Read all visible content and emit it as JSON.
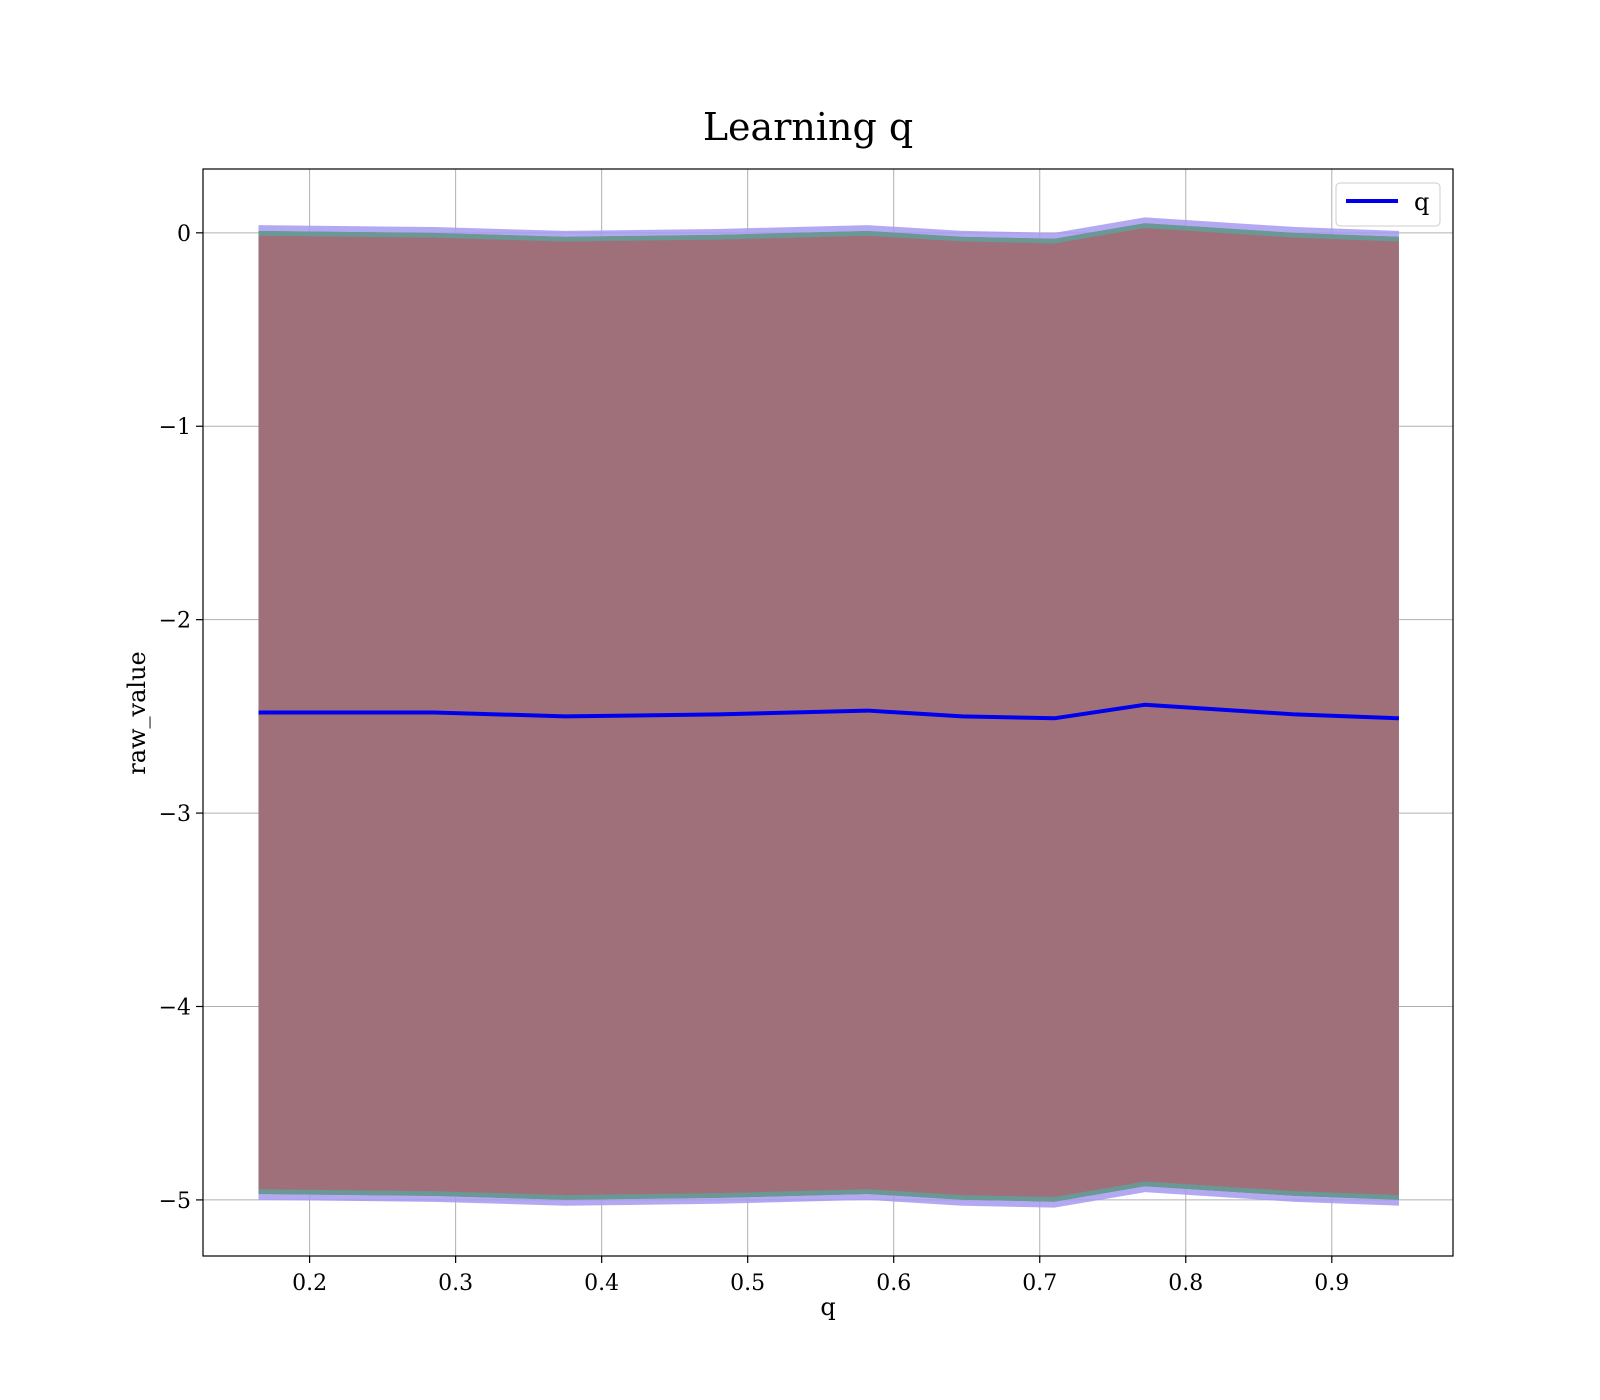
{
  "chart_data": {
    "type": "line",
    "title": "Learning q",
    "xlabel": "q",
    "ylabel": "raw_value",
    "xlim": [
      0.127,
      0.983
    ],
    "ylim": [
      -5.29,
      0.33
    ],
    "xticks": [
      0.2,
      0.3,
      0.4,
      0.5,
      0.6,
      0.7,
      0.8,
      0.9
    ],
    "xtick_labels": [
      "0.2",
      "0.3",
      "0.4",
      "0.5",
      "0.6",
      "0.7",
      "0.8",
      "0.9"
    ],
    "yticks": [
      0,
      -1,
      -2,
      -3,
      -4,
      -5
    ],
    "ytick_labels": [
      "0",
      "−1",
      "−2",
      "−3",
      "−4",
      "−5"
    ],
    "grid": true,
    "legend_position": "top-right",
    "x": [
      0.165,
      0.285,
      0.375,
      0.48,
      0.582,
      0.647,
      0.71,
      0.772,
      0.875,
      0.946
    ],
    "series": [
      {
        "name": "q",
        "color": "#0000ee",
        "values": [
          -2.48,
          -2.48,
          -2.5,
          -2.49,
          -2.47,
          -2.5,
          -2.51,
          -2.44,
          -2.49,
          -2.51
        ]
      }
    ],
    "band_series": {
      "color": "#a0707a",
      "lower": [
        -4.97,
        -4.98,
        -5.0,
        -4.99,
        -4.97,
        -5.0,
        -5.01,
        -4.93,
        -4.98,
        -5.0
      ],
      "upper": [
        0.01,
        0.0,
        -0.02,
        -0.01,
        0.01,
        -0.02,
        -0.03,
        0.05,
        0.0,
        -0.02
      ]
    }
  },
  "colors": {
    "band_fill": "#a0707a",
    "band_edge_teal": "#5f9f9a",
    "band_edge_purple": "#a59af0",
    "line": "#0000ee",
    "grid": "#b0b0b0"
  }
}
